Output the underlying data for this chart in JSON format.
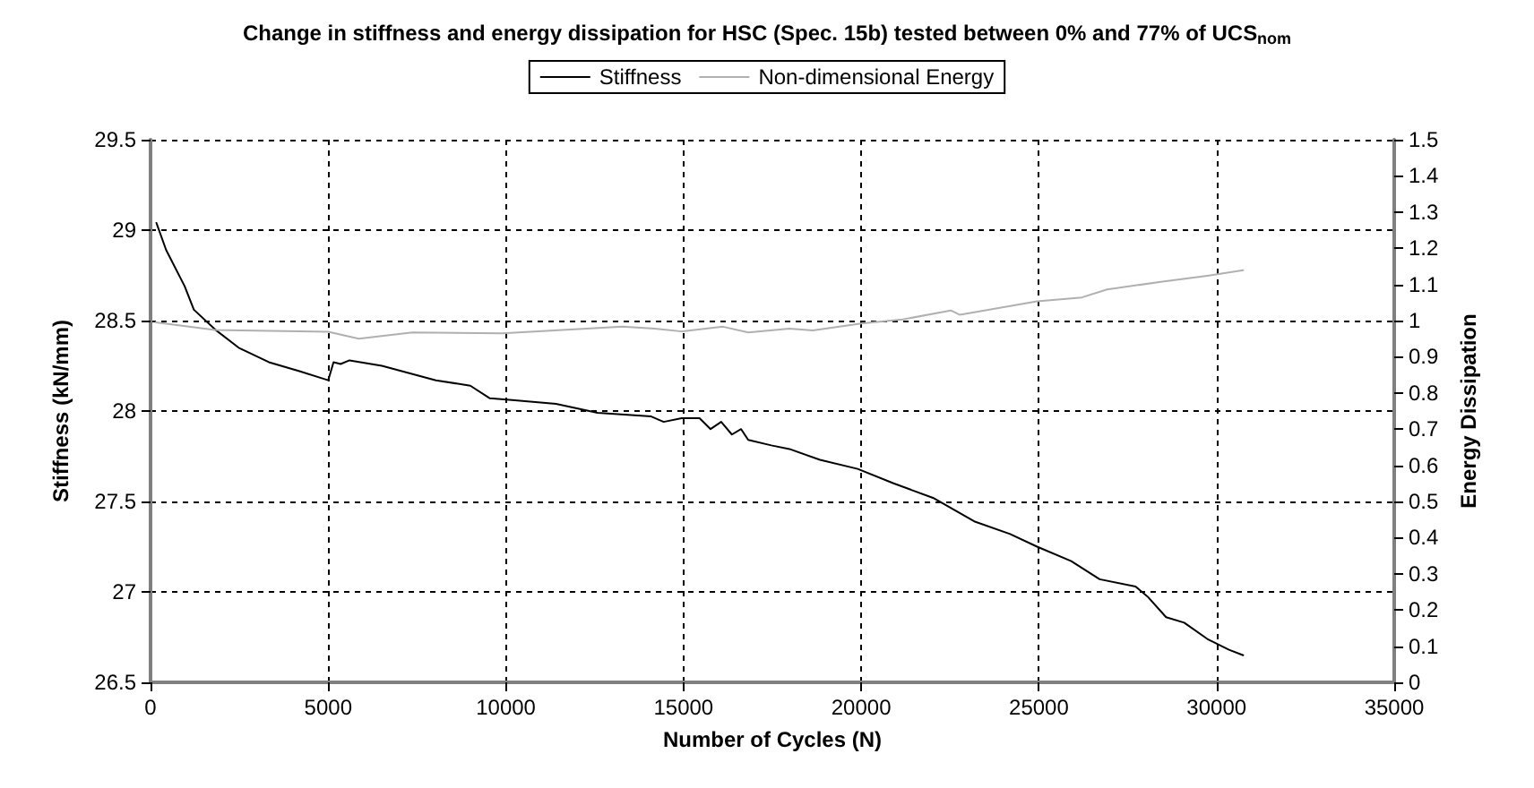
{
  "chart_data": {
    "type": "line",
    "title": "Change in stiffness and energy dissipation for HSC (Spec. 15b) tested between 0% and 77% of UCS$_{nom}$",
    "xlabel": "Number of Cycles (N)",
    "ylabel": "Stiffness (kN/mm)",
    "y2label": "Energy Dissipation",
    "xlim": [
      0,
      35000
    ],
    "xticks": [
      0,
      5000,
      10000,
      15000,
      20000,
      25000,
      30000,
      35000
    ],
    "ylim": [
      26.5,
      29.5
    ],
    "yticks": [
      26.5,
      27,
      27.5,
      28,
      28.5,
      29,
      29.5
    ],
    "y2lim": [
      0,
      1.5
    ],
    "y2ticks": [
      0,
      0.1,
      0.2,
      0.3,
      0.4,
      0.5,
      0.6,
      0.7,
      0.8,
      0.9,
      1,
      1.1,
      1.2,
      1.3,
      1.4,
      1.5
    ],
    "grid": true,
    "legend": "top",
    "marker": "none",
    "line_style": "solid",
    "series": [
      {
        "name": "Stiffness",
        "color": "#000000",
        "x": [
          165,
          440,
          960,
          1220,
          1820,
          2480,
          3330,
          4190,
          5000,
          5150,
          5350,
          5600,
          6510,
          8030,
          9000,
          9550,
          10250,
          11410,
          12580,
          14090,
          14440,
          14950,
          15450,
          15760,
          16060,
          16360,
          16620,
          16820,
          17470,
          17980,
          18840,
          19900,
          20910,
          22020,
          23180,
          24190,
          24950,
          25910,
          26710,
          27720,
          28080,
          28580,
          29090,
          29740,
          30350,
          30750
        ],
        "values": [
          29.04,
          28.89,
          28.69,
          28.56,
          28.45,
          28.35,
          28.27,
          28.22,
          28.17,
          28.27,
          28.26,
          28.28,
          28.25,
          28.17,
          28.14,
          28.07,
          28.06,
          28.04,
          27.99,
          27.97,
          27.94,
          27.96,
          27.96,
          27.9,
          27.94,
          27.87,
          27.9,
          27.84,
          27.81,
          27.79,
          27.73,
          27.68,
          27.6,
          27.52,
          27.39,
          27.32,
          27.25,
          27.17,
          27.07,
          27.03,
          26.97,
          26.86,
          26.83,
          26.74,
          26.68,
          26.65
        ]
      },
      {
        "name": "Non-dimensional Energy",
        "color": "#b0b0b0",
        "axis": "y2",
        "x": [
          150,
          1820,
          5000,
          5860,
          7370,
          9900,
          13280,
          14190,
          14950,
          16110,
          16820,
          17980,
          18640,
          20000,
          21160,
          22520,
          22780,
          24950,
          26210,
          26920,
          28430,
          29740,
          30750
        ],
        "values": [
          0.995,
          0.974,
          0.969,
          0.95,
          0.967,
          0.965,
          0.983,
          0.978,
          0.97,
          0.983,
          0.967,
          0.978,
          0.973,
          0.992,
          1.003,
          1.028,
          1.016,
          1.053,
          1.064,
          1.086,
          1.107,
          1.124,
          1.139
        ]
      }
    ]
  }
}
